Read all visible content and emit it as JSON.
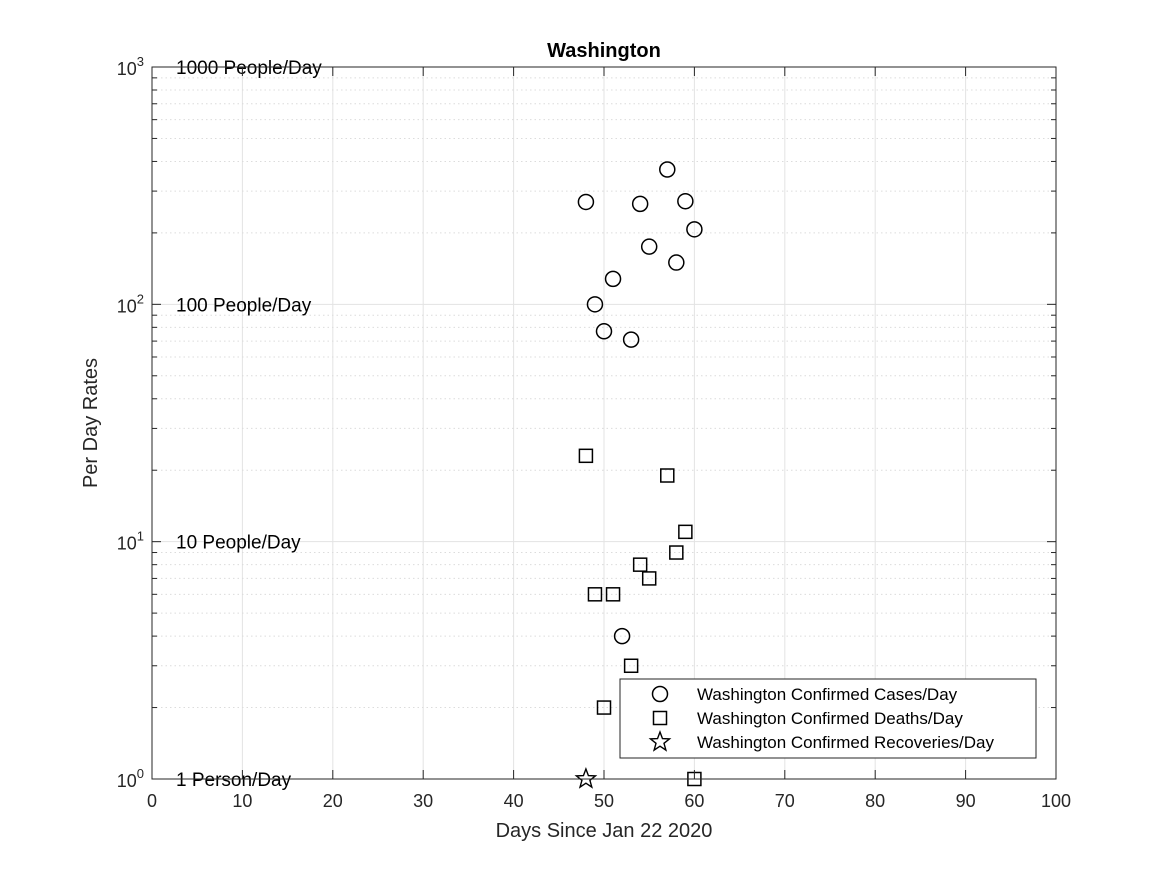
{
  "chart_data": {
    "type": "scatter",
    "title": "Washington",
    "xlabel": "Days Since Jan 22 2020",
    "ylabel": "Per Day Rates",
    "xlim": [
      0,
      100
    ],
    "ylim": [
      1,
      1000
    ],
    "yscale": "log",
    "x_ticks": [
      "0",
      "10",
      "20",
      "30",
      "40",
      "50",
      "60",
      "70",
      "80",
      "90",
      "100"
    ],
    "y_ticks": [
      {
        "base": "10",
        "exp": "0"
      },
      {
        "base": "10",
        "exp": "1"
      },
      {
        "base": "10",
        "exp": "2"
      },
      {
        "base": "10",
        "exp": "3"
      }
    ],
    "grid": true,
    "annotations": [
      {
        "text": "1000 People/Day",
        "y": 1000
      },
      {
        "text": "100 People/Day",
        "y": 100
      },
      {
        "text": "10 People/Day",
        "y": 10
      },
      {
        "text": "1 Person/Day",
        "y": 1
      }
    ],
    "legend_position": "bottom-right",
    "series": [
      {
        "name": "Washington Confirmed Cases/Day",
        "marker": "circle",
        "color": "#000000",
        "points": [
          {
            "x": 48,
            "y": 270
          },
          {
            "x": 49,
            "y": 100
          },
          {
            "x": 50,
            "y": 77
          },
          {
            "x": 51,
            "y": 128
          },
          {
            "x": 52,
            "y": 4
          },
          {
            "x": 53,
            "y": 71
          },
          {
            "x": 54,
            "y": 265
          },
          {
            "x": 55,
            "y": 175
          },
          {
            "x": 57,
            "y": 370
          },
          {
            "x": 58,
            "y": 150
          },
          {
            "x": 59,
            "y": 272
          },
          {
            "x": 60,
            "y": 207
          }
        ]
      },
      {
        "name": "Washington Confirmed Deaths/Day",
        "marker": "square",
        "color": "#000000",
        "points": [
          {
            "x": 48,
            "y": 23
          },
          {
            "x": 49,
            "y": 6
          },
          {
            "x": 50,
            "y": 2
          },
          {
            "x": 51,
            "y": 6
          },
          {
            "x": 53,
            "y": 3
          },
          {
            "x": 54,
            "y": 8
          },
          {
            "x": 55,
            "y": 7
          },
          {
            "x": 57,
            "y": 19
          },
          {
            "x": 58,
            "y": 9
          },
          {
            "x": 59,
            "y": 11
          },
          {
            "x": 60,
            "y": 1
          }
        ]
      },
      {
        "name": "Washington Confirmed Recoveries/Day",
        "marker": "star",
        "color": "#000000",
        "points": [
          {
            "x": 48,
            "y": 1
          }
        ]
      }
    ]
  }
}
